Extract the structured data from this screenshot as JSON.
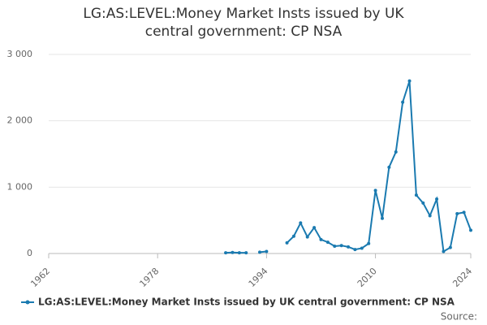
{
  "chart_data": {
    "type": "line",
    "title": "LG:AS:LEVEL:Money Market Insts issued by UK central government: CP NSA",
    "x": [
      1988,
      1989,
      1990,
      1991,
      1992,
      1993,
      1994,
      1995,
      1997,
      1998,
      1999,
      2000,
      2001,
      2002,
      2003,
      2004,
      2005,
      2006,
      2007,
      2008,
      2009,
      2010,
      2011,
      2012,
      2013,
      2014,
      2015,
      2016,
      2017,
      2018,
      2019,
      2020,
      2021,
      2022,
      2023,
      2024
    ],
    "series": [
      {
        "name": "LG:AS:LEVEL:Money Market Insts issued by UK central government: CP NSA",
        "color": "#1a7ab0",
        "values": [
          10,
          15,
          10,
          10,
          null,
          20,
          30,
          null,
          160,
          260,
          460,
          250,
          390,
          210,
          170,
          110,
          120,
          100,
          60,
          80,
          150,
          950,
          530,
          1300,
          1530,
          2280,
          2600,
          880,
          760,
          570,
          820,
          30,
          90,
          600,
          620,
          350
        ]
      }
    ],
    "xlim": [
      1962,
      2024
    ],
    "xticks": [
      1962,
      1978,
      1994,
      2010,
      2024
    ],
    "ylim": [
      0,
      3000
    ],
    "yticks": [
      0,
      {
        "value": 1000,
        "label": "1 000"
      },
      {
        "value": 2000,
        "label": "2 000"
      },
      {
        "value": 3000,
        "label": "3 000"
      }
    ],
    "grid": true,
    "legend": "bottom",
    "source": "Source:"
  }
}
